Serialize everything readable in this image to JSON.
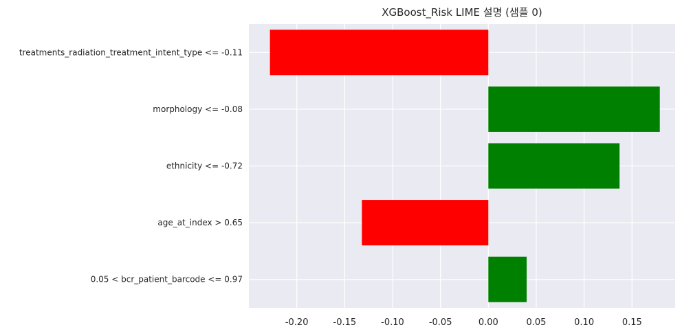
{
  "chart_data": {
    "type": "bar",
    "orientation": "horizontal",
    "title": "XGBoost_Risk LIME 설명 (샘플 0)",
    "xlabel": "",
    "ylabel": "",
    "categories": [
      "treatments_radiation_treatment_intent_type <= -0.11",
      "morphology <= -0.08",
      "ethnicity <= -0.72",
      "age_at_index > 0.65",
      "0.05 < bcr_patient_barcode <= 0.97"
    ],
    "values": [
      -0.228,
      0.179,
      0.137,
      -0.132,
      0.04
    ],
    "xlim": [
      -0.25,
      0.195
    ],
    "xticks": [
      -0.2,
      -0.15,
      -0.1,
      -0.05,
      0.0,
      0.05,
      0.1,
      0.15
    ],
    "xtick_labels": [
      "-0.20",
      "-0.15",
      "-0.10",
      "-0.05",
      "0.00",
      "0.05",
      "0.10",
      "0.15"
    ],
    "grid": true,
    "legend": "none",
    "colors": {
      "positive": "#008000",
      "negative": "#ff0000",
      "background": "#eaeaf2",
      "grid": "#ffffff"
    }
  }
}
